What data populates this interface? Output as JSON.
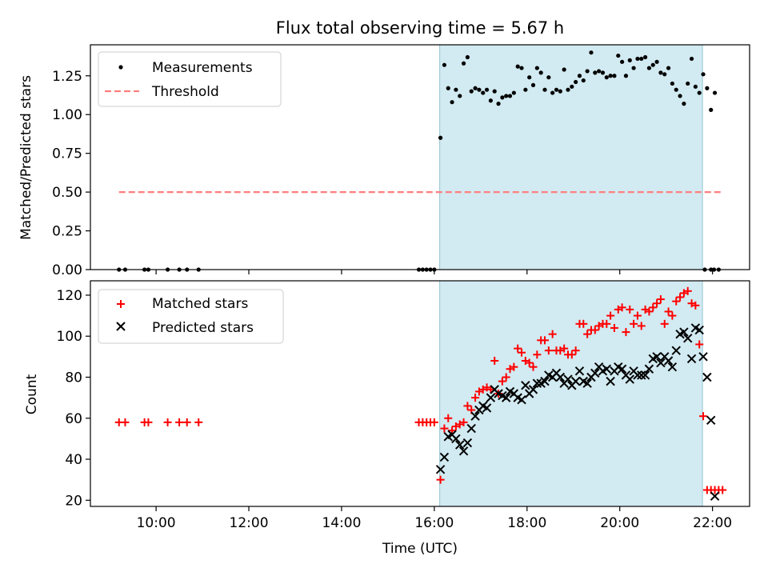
{
  "title": "Flux total observing time = 5.67 h",
  "chart_data": [
    {
      "type": "scatter",
      "ylabel": "Matched/Predicted stars",
      "ylim": [
        0,
        1.45
      ],
      "xlim": [
        "08:35",
        "22:48"
      ],
      "yticks": [
        "0.00",
        "0.25",
        "0.50",
        "0.75",
        "1.00",
        "1.25"
      ],
      "observing_window": [
        "16:07",
        "21:47"
      ],
      "legend": {
        "position": "top-left",
        "entries": [
          "Measurements",
          "Threshold"
        ]
      },
      "threshold": {
        "name": "Threshold",
        "value": 0.5,
        "x_range": [
          "09:12",
          "22:12"
        ],
        "color": "#ff7f7f"
      },
      "series": [
        {
          "name": "Measurements",
          "color": "#000000",
          "points": [
            [
              "09:12",
              0
            ],
            [
              "09:20",
              0
            ],
            [
              "09:45",
              0
            ],
            [
              "09:50",
              0
            ],
            [
              "10:15",
              0
            ],
            [
              "10:30",
              0
            ],
            [
              "10:40",
              0
            ],
            [
              "10:55",
              0
            ],
            [
              "15:40",
              0
            ],
            [
              "15:45",
              0
            ],
            [
              "15:50",
              0
            ],
            [
              "15:55",
              0
            ],
            [
              "16:00",
              0
            ],
            [
              "16:08",
              0.85
            ],
            [
              "16:13",
              1.32
            ],
            [
              "16:18",
              1.17
            ],
            [
              "16:23",
              1.08
            ],
            [
              "16:28",
              1.16
            ],
            [
              "16:33",
              1.12
            ],
            [
              "16:38",
              1.33
            ],
            [
              "16:43",
              1.37
            ],
            [
              "16:48",
              1.15
            ],
            [
              "16:53",
              1.17
            ],
            [
              "16:58",
              1.16
            ],
            [
              "17:03",
              1.14
            ],
            [
              "17:08",
              1.16
            ],
            [
              "17:13",
              1.09
            ],
            [
              "17:18",
              1.15
            ],
            [
              "17:23",
              1.07
            ],
            [
              "17:28",
              1.11
            ],
            [
              "17:33",
              1.12
            ],
            [
              "17:38",
              1.12
            ],
            [
              "17:43",
              1.14
            ],
            [
              "17:48",
              1.31
            ],
            [
              "17:53",
              1.3
            ],
            [
              "17:58",
              1.16
            ],
            [
              "18:03",
              1.24
            ],
            [
              "18:08",
              1.19
            ],
            [
              "18:13",
              1.3
            ],
            [
              "18:18",
              1.27
            ],
            [
              "18:23",
              1.16
            ],
            [
              "18:28",
              1.24
            ],
            [
              "18:33",
              1.14
            ],
            [
              "18:38",
              1.16
            ],
            [
              "18:43",
              1.15
            ],
            [
              "18:48",
              1.29
            ],
            [
              "18:53",
              1.16
            ],
            [
              "18:58",
              1.18
            ],
            [
              "19:03",
              1.21
            ],
            [
              "19:08",
              1.25
            ],
            [
              "19:13",
              1.22
            ],
            [
              "19:18",
              1.28
            ],
            [
              "19:23",
              1.4
            ],
            [
              "19:28",
              1.27
            ],
            [
              "19:33",
              1.28
            ],
            [
              "19:38",
              1.27
            ],
            [
              "19:43",
              1.24
            ],
            [
              "19:48",
              1.25
            ],
            [
              "19:53",
              1.25
            ],
            [
              "19:58",
              1.38
            ],
            [
              "20:03",
              1.34
            ],
            [
              "20:08",
              1.25
            ],
            [
              "20:13",
              1.35
            ],
            [
              "20:18",
              1.3
            ],
            [
              "20:23",
              1.36
            ],
            [
              "20:28",
              1.36
            ],
            [
              "20:33",
              1.37
            ],
            [
              "20:38",
              1.3
            ],
            [
              "20:43",
              1.32
            ],
            [
              "20:48",
              1.34
            ],
            [
              "20:53",
              1.27
            ],
            [
              "20:58",
              1.26
            ],
            [
              "21:03",
              1.3
            ],
            [
              "21:08",
              1.2
            ],
            [
              "21:13",
              1.16
            ],
            [
              "21:18",
              1.12
            ],
            [
              "21:23",
              1.07
            ],
            [
              "21:28",
              1.2
            ],
            [
              "21:33",
              1.36
            ],
            [
              "21:38",
              1.18
            ],
            [
              "21:43",
              1.14
            ],
            [
              "21:48",
              1.26
            ],
            [
              "21:53",
              1.17
            ],
            [
              "21:58",
              1.03
            ],
            [
              "22:03",
              1.14
            ],
            [
              "21:50",
              0
            ],
            [
              "21:58",
              0
            ],
            [
              "22:02",
              0
            ],
            [
              "22:08",
              0
            ]
          ]
        }
      ]
    },
    {
      "type": "scatter",
      "xlabel": "Time (UTC)",
      "ylabel": "Count",
      "ylim": [
        17,
        127
      ],
      "xlim": [
        "08:35",
        "22:48"
      ],
      "xticks": [
        "10:00",
        "12:00",
        "14:00",
        "16:00",
        "18:00",
        "20:00",
        "22:00"
      ],
      "yticks": [
        "20",
        "40",
        "60",
        "80",
        "100",
        "120"
      ],
      "observing_window": [
        "16:07",
        "21:47"
      ],
      "legend": {
        "position": "top-left",
        "entries": [
          "Matched stars",
          "Predicted stars"
        ]
      },
      "series": [
        {
          "name": "Matched stars",
          "marker": "plus",
          "color": "#ff0000",
          "points": [
            [
              "09:12",
              58
            ],
            [
              "09:20",
              58
            ],
            [
              "09:45",
              58
            ],
            [
              "09:50",
              58
            ],
            [
              "10:15",
              58
            ],
            [
              "10:30",
              58
            ],
            [
              "10:40",
              58
            ],
            [
              "10:55",
              58
            ],
            [
              "15:40",
              58
            ],
            [
              "15:45",
              58
            ],
            [
              "15:50",
              58
            ],
            [
              "15:55",
              58
            ],
            [
              "16:00",
              58
            ],
            [
              "16:08",
              30
            ],
            [
              "16:13",
              55
            ],
            [
              "16:18",
              60
            ],
            [
              "16:23",
              54
            ],
            [
              "16:28",
              56
            ],
            [
              "16:33",
              57
            ],
            [
              "16:38",
              58
            ],
            [
              "16:43",
              66
            ],
            [
              "16:48",
              64
            ],
            [
              "16:53",
              70
            ],
            [
              "16:58",
              73
            ],
            [
              "17:03",
              74
            ],
            [
              "17:08",
              75
            ],
            [
              "17:13",
              74
            ],
            [
              "17:18",
              88
            ],
            [
              "17:23",
              72
            ],
            [
              "17:28",
              78
            ],
            [
              "17:33",
              80
            ],
            [
              "17:38",
              84
            ],
            [
              "17:43",
              85
            ],
            [
              "17:48",
              94
            ],
            [
              "17:53",
              92
            ],
            [
              "17:58",
              88
            ],
            [
              "18:03",
              87
            ],
            [
              "18:08",
              85
            ],
            [
              "18:13",
              91
            ],
            [
              "18:18",
              98
            ],
            [
              "18:23",
              98
            ],
            [
              "18:28",
              93
            ],
            [
              "18:33",
              101
            ],
            [
              "18:38",
              93
            ],
            [
              "18:43",
              93
            ],
            [
              "18:48",
              94
            ],
            [
              "18:53",
              91
            ],
            [
              "18:58",
              91
            ],
            [
              "19:03",
              93
            ],
            [
              "19:08",
              106
            ],
            [
              "19:13",
              106
            ],
            [
              "19:18",
              101
            ],
            [
              "19:23",
              103
            ],
            [
              "19:28",
              103
            ],
            [
              "19:33",
              105
            ],
            [
              "19:38",
              106
            ],
            [
              "19:43",
              106
            ],
            [
              "19:48",
              110
            ],
            [
              "19:53",
              104
            ],
            [
              "19:58",
              113
            ],
            [
              "20:03",
              114
            ],
            [
              "20:08",
              102
            ],
            [
              "20:13",
              113
            ],
            [
              "20:18",
              106
            ],
            [
              "20:23",
              110
            ],
            [
              "20:28",
              105
            ],
            [
              "20:33",
              113
            ],
            [
              "20:38",
              112
            ],
            [
              "20:43",
              114
            ],
            [
              "20:48",
              116
            ],
            [
              "20:53",
              118
            ],
            [
              "20:58",
              106
            ],
            [
              "21:03",
              112
            ],
            [
              "21:08",
              110
            ],
            [
              "21:13",
              117
            ],
            [
              "21:18",
              119
            ],
            [
              "21:23",
              121
            ],
            [
              "21:28",
              122
            ],
            [
              "21:33",
              116
            ],
            [
              "21:38",
              115
            ],
            [
              "21:43",
              96
            ],
            [
              "21:48",
              61
            ],
            [
              "21:53",
              25
            ],
            [
              "21:58",
              25
            ],
            [
              "22:03",
              25
            ],
            [
              "22:08",
              25
            ],
            [
              "22:13",
              25
            ]
          ]
        },
        {
          "name": "Predicted stars",
          "marker": "x",
          "color": "#000000",
          "points": [
            [
              "16:08",
              35
            ],
            [
              "16:13",
              41
            ],
            [
              "16:18",
              51
            ],
            [
              "16:23",
              52
            ],
            [
              "16:28",
              50
            ],
            [
              "16:33",
              47
            ],
            [
              "16:38",
              44
            ],
            [
              "16:43",
              48
            ],
            [
              "16:48",
              55
            ],
            [
              "16:53",
              61
            ],
            [
              "16:58",
              64
            ],
            [
              "17:03",
              66
            ],
            [
              "17:08",
              65
            ],
            [
              "17:13",
              70
            ],
            [
              "17:18",
              74
            ],
            [
              "17:23",
              72
            ],
            [
              "17:28",
              71
            ],
            [
              "17:33",
              70
            ],
            [
              "17:38",
              73
            ],
            [
              "17:43",
              72
            ],
            [
              "17:48",
              70
            ],
            [
              "17:53",
              69
            ],
            [
              "17:58",
              76
            ],
            [
              "18:03",
              72
            ],
            [
              "18:08",
              74
            ],
            [
              "18:13",
              77
            ],
            [
              "18:18",
              77
            ],
            [
              "18:23",
              78
            ],
            [
              "18:28",
              81
            ],
            [
              "18:33",
              80
            ],
            [
              "18:38",
              82
            ],
            [
              "18:43",
              80
            ],
            [
              "18:48",
              77
            ],
            [
              "18:53",
              79
            ],
            [
              "18:58",
              76
            ],
            [
              "19:03",
              78
            ],
            [
              "19:08",
              83
            ],
            [
              "19:13",
              78
            ],
            [
              "19:18",
              77
            ],
            [
              "19:23",
              80
            ],
            [
              "19:28",
              82
            ],
            [
              "19:33",
              85
            ],
            [
              "19:38",
              83
            ],
            [
              "19:43",
              84
            ],
            [
              "19:48",
              78
            ],
            [
              "19:53",
              83
            ],
            [
              "19:58",
              85
            ],
            [
              "20:03",
              84
            ],
            [
              "20:08",
              81
            ],
            [
              "20:13",
              79
            ],
            [
              "20:18",
              83
            ],
            [
              "20:23",
              81
            ],
            [
              "20:28",
              81
            ],
            [
              "20:33",
              81
            ],
            [
              "20:38",
              84
            ],
            [
              "20:43",
              89
            ],
            [
              "20:48",
              90
            ],
            [
              "20:53",
              87
            ],
            [
              "20:58",
              90
            ],
            [
              "21:03",
              88
            ],
            [
              "21:08",
              85
            ],
            [
              "21:13",
              93
            ],
            [
              "21:18",
              101
            ],
            [
              "21:23",
              102
            ],
            [
              "21:28",
              99
            ],
            [
              "21:33",
              89
            ],
            [
              "21:38",
              104
            ],
            [
              "21:43",
              103
            ],
            [
              "21:48",
              90
            ],
            [
              "21:53",
              80
            ],
            [
              "21:58",
              59
            ],
            [
              "22:03",
              22
            ]
          ]
        }
      ]
    }
  ]
}
